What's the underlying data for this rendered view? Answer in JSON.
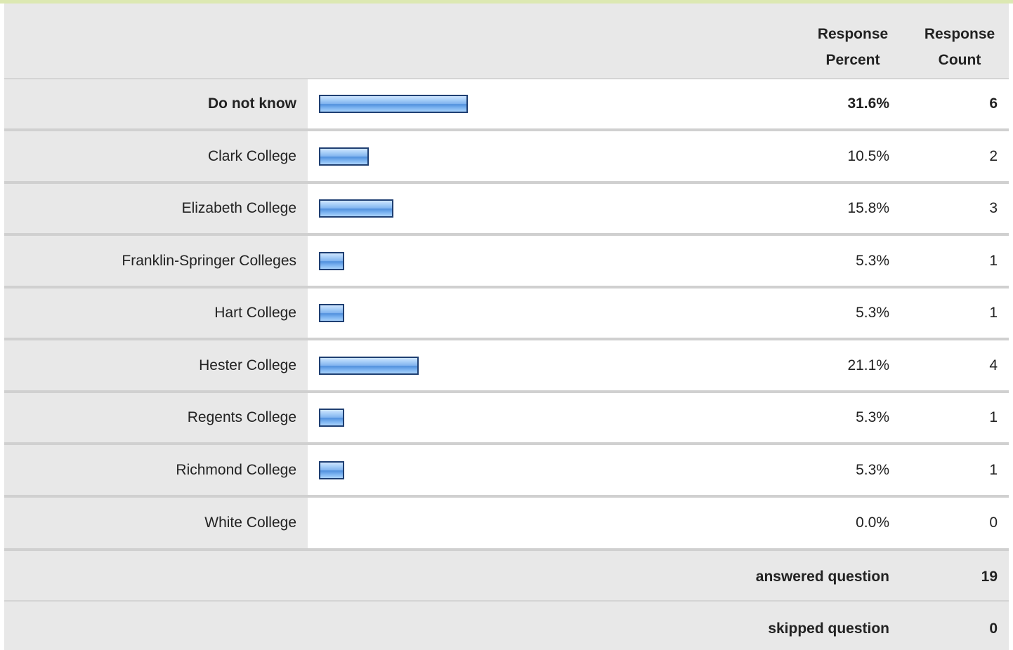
{
  "chart_data": {
    "type": "bar",
    "orientation": "horizontal",
    "columns": {
      "percent_header_line1": "Response",
      "percent_header_line2": "Percent",
      "count_header_line1": "Response",
      "count_header_line2": "Count"
    },
    "categories": [
      "Do not know",
      "Clark College",
      "Elizabeth College",
      "Franklin-Springer Colleges",
      "Hart College",
      "Hester College",
      "Regents College",
      "Richmond College",
      "White College"
    ],
    "percent_labels": [
      "31.6%",
      "10.5%",
      "15.8%",
      "5.3%",
      "5.3%",
      "21.1%",
      "5.3%",
      "5.3%",
      "0.0%"
    ],
    "percent_values": [
      31.6,
      10.5,
      15.8,
      5.3,
      5.3,
      21.1,
      5.3,
      5.3,
      0.0
    ],
    "count_labels": [
      "6",
      "2",
      "3",
      "1",
      "1",
      "4",
      "1",
      "1",
      "0"
    ],
    "counts": [
      6,
      2,
      3,
      1,
      1,
      4,
      1,
      1,
      0
    ],
    "highlighted_row": 0,
    "summary": {
      "answered_label": "answered question",
      "answered_value": "19",
      "skipped_label": "skipped question",
      "skipped_value": "0"
    },
    "colors": {
      "bar_border": "#1f3f72",
      "bar_fill": "#7fb3ef",
      "panel_bg": "#e8e8e8",
      "bar_cell_bg": "#ffffff",
      "top_border": "#dce8b2"
    }
  }
}
